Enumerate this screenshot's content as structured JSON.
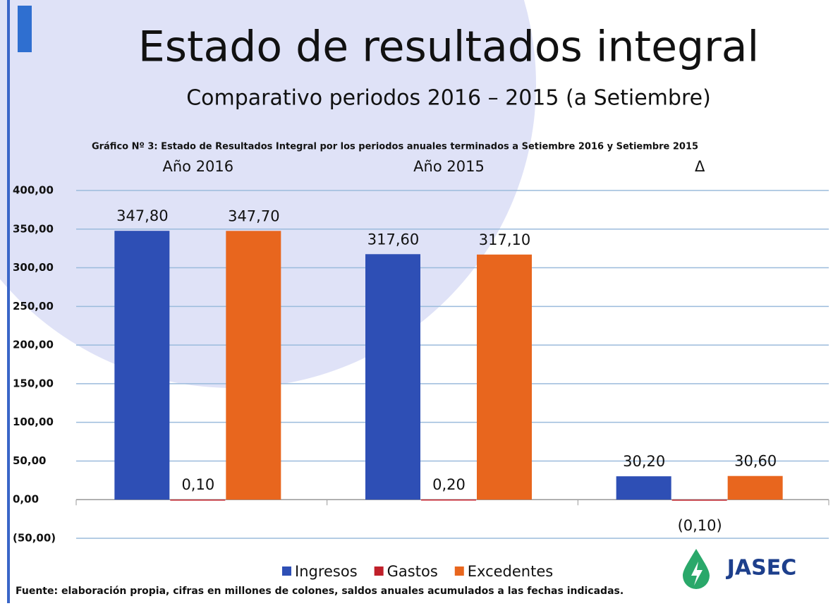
{
  "chart_data": {
    "type": "bar",
    "title": "Estado de resultados integral",
    "subtitle": "Comparativo periodos 2016 – 2015 (a Setiembre)",
    "caption": "Gráfico Nº 3: Estado de Resultados Integral por los periodos anuales terminados a Setiembre 2016 y Setiembre 2015",
    "footnote": "Fuente: elaboración propia, cifras en millones de colones, saldos anuales acumulados a las fechas indicadas.",
    "logo": "JASEC",
    "categories": [
      "Año 2016",
      "Año 2015",
      "Δ"
    ],
    "series": [
      {
        "name": "Ingresos",
        "color": "#2e4fb5",
        "values": [
          347.8,
          317.6,
          30.2
        ],
        "value_labels": [
          "347,80",
          "317,60",
          "30,20"
        ]
      },
      {
        "name": "Gastos",
        "color": "#c0202a",
        "values": [
          0.1,
          0.2,
          -0.1
        ],
        "value_labels": [
          "0,10",
          "0,20",
          "(0,10)"
        ]
      },
      {
        "name": "Excedentes",
        "color": "#e8661e",
        "values": [
          347.7,
          317.1,
          30.6
        ],
        "value_labels": [
          "347,70",
          "317,10",
          "30,60"
        ]
      }
    ],
    "ylim": [
      -50,
      400
    ],
    "yticks": [
      {
        "value": -50,
        "label": "(50,00)"
      },
      {
        "value": 0,
        "label": "0,00"
      },
      {
        "value": 50,
        "label": "50,00"
      },
      {
        "value": 100,
        "label": "100,00"
      },
      {
        "value": 150,
        "label": "150,00"
      },
      {
        "value": 200,
        "label": "200,00"
      },
      {
        "value": 250,
        "label": "250,00"
      },
      {
        "value": 300,
        "label": "300,00"
      },
      {
        "value": 350,
        "label": "350,00"
      },
      {
        "value": 400,
        "label": "400,00"
      }
    ],
    "grid": true,
    "legend": "bottom"
  }
}
